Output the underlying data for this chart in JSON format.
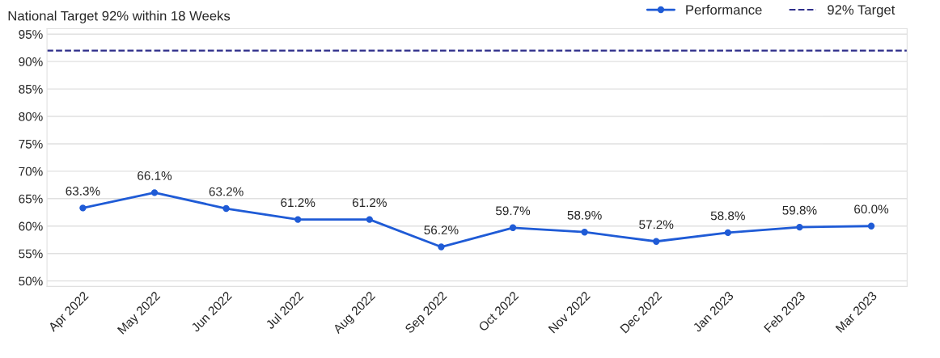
{
  "chart_data": {
    "type": "line",
    "title": "National Target 92% within 18 Weeks",
    "categories": [
      "Apr 2022",
      "May 2022",
      "Jun 2022",
      "Jul 2022",
      "Aug 2022",
      "Sep 2022",
      "Oct 2022",
      "Nov 2022",
      "Dec 2022",
      "Jan 2023",
      "Feb 2023",
      "Mar 2023"
    ],
    "series": [
      {
        "name": "Performance",
        "color": "#1f5bd6",
        "values": [
          63.3,
          66.1,
          63.2,
          61.2,
          61.2,
          56.2,
          59.7,
          58.9,
          57.2,
          58.8,
          59.8,
          60.0
        ],
        "value_labels": [
          "63.3%",
          "66.1%",
          "63.2%",
          "61.2%",
          "61.2%",
          "56.2%",
          "59.7%",
          "58.9%",
          "57.2%",
          "58.8%",
          "59.8%",
          "60.0%"
        ]
      }
    ],
    "ref_lines": [
      {
        "axis": "y",
        "value": 92,
        "label": "92% Target",
        "color": "#2e2e8a",
        "line_style": "dashed"
      }
    ],
    "ylim": [
      49,
      96
    ],
    "yticks": [
      {
        "value": 50,
        "label": "50%"
      },
      {
        "value": 55,
        "label": "55%"
      },
      {
        "value": 60,
        "label": "60%"
      },
      {
        "value": 65,
        "label": "65%"
      },
      {
        "value": 70,
        "label": "70%"
      },
      {
        "value": 75,
        "label": "75%"
      },
      {
        "value": 80,
        "label": "80%"
      },
      {
        "value": 85,
        "label": "85%"
      },
      {
        "value": 90,
        "label": "90%"
      },
      {
        "value": 95,
        "label": "95%"
      }
    ],
    "grid": "y",
    "legend": "top right",
    "marker": "circle",
    "line_style": "solid"
  }
}
